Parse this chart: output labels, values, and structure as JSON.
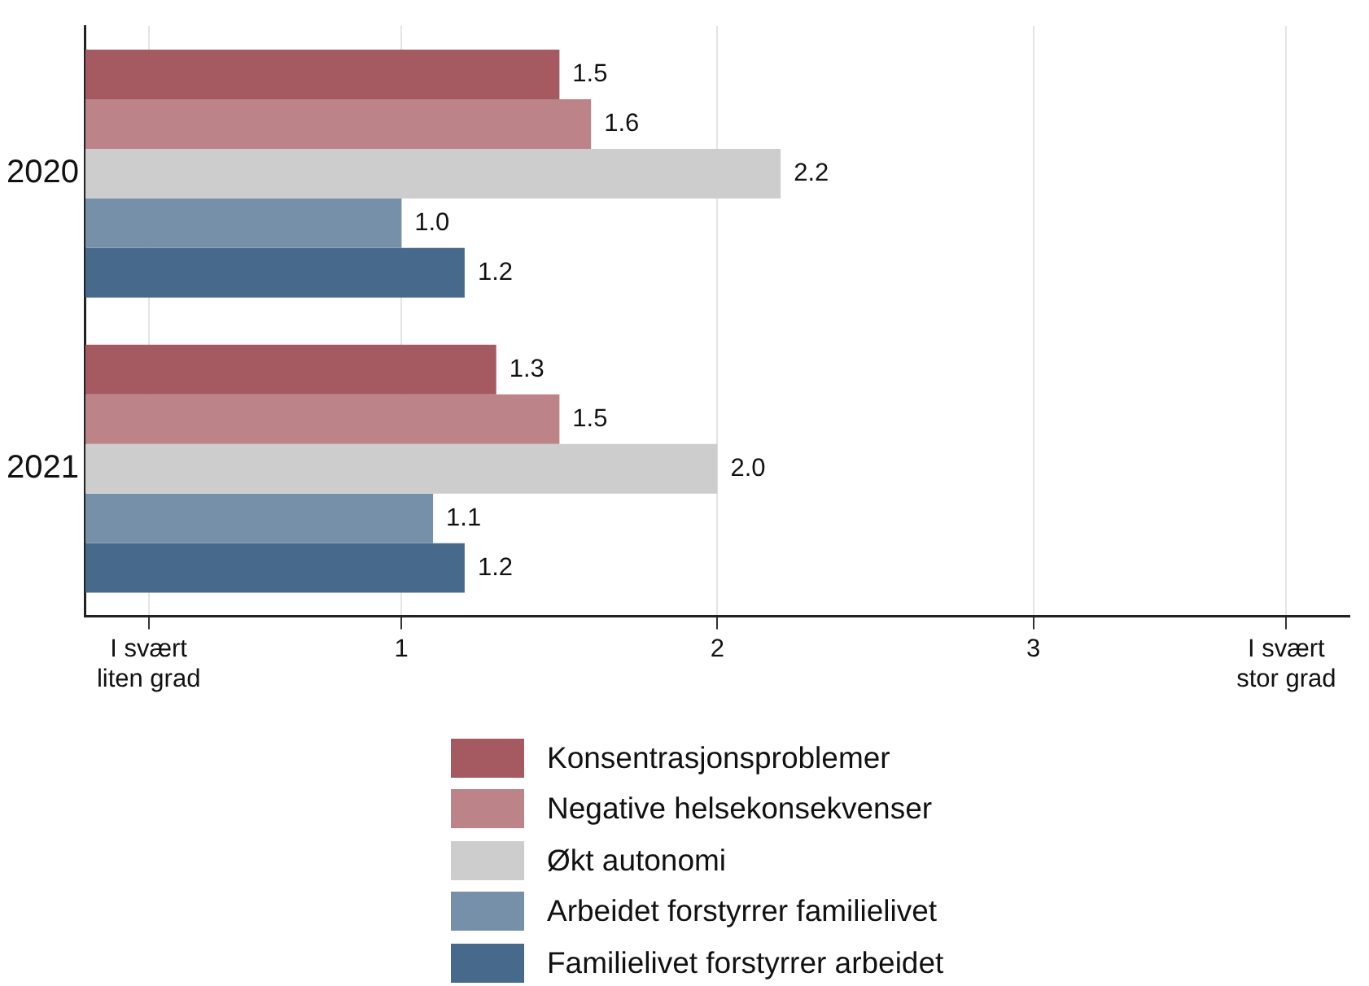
{
  "chart_data": {
    "type": "bar",
    "orientation": "horizontal",
    "categories": [
      "2020",
      "2021"
    ],
    "series": [
      {
        "name": "Konsentrasjonsproblemer",
        "color": "#a45a60",
        "values": [
          1.5,
          1.3
        ],
        "value_labels": [
          "1.5",
          "1.3"
        ]
      },
      {
        "name": "Negative helsekonsekvenser",
        "color": "#bc8488",
        "values": [
          1.6,
          1.5
        ],
        "value_labels": [
          "1.6",
          "1.5"
        ]
      },
      {
        "name": "Økt autonomi",
        "color": "#cdcdcd",
        "values": [
          2.2,
          2.0
        ],
        "value_labels": [
          "2.2",
          "2.0"
        ]
      },
      {
        "name": "Arbeidet forstyrrer familielivet",
        "color": "#7690aa",
        "values": [
          1.0,
          1.1
        ],
        "value_labels": [
          "1.0",
          "1.1"
        ]
      },
      {
        "name": "Familielivet forstyrrer arbeidet",
        "color": "#476a8c",
        "values": [
          1.2,
          1.2
        ],
        "value_labels": [
          "1.2",
          "1.2"
        ]
      }
    ],
    "xlim": [
      0,
      4
    ],
    "xticks": [
      {
        "value": 0.2,
        "label": "I svært liten grad"
      },
      1,
      2,
      3,
      {
        "value": 3.8,
        "label": "I svært stor grad"
      }
    ],
    "grid": "x",
    "legend": "bottom"
  }
}
